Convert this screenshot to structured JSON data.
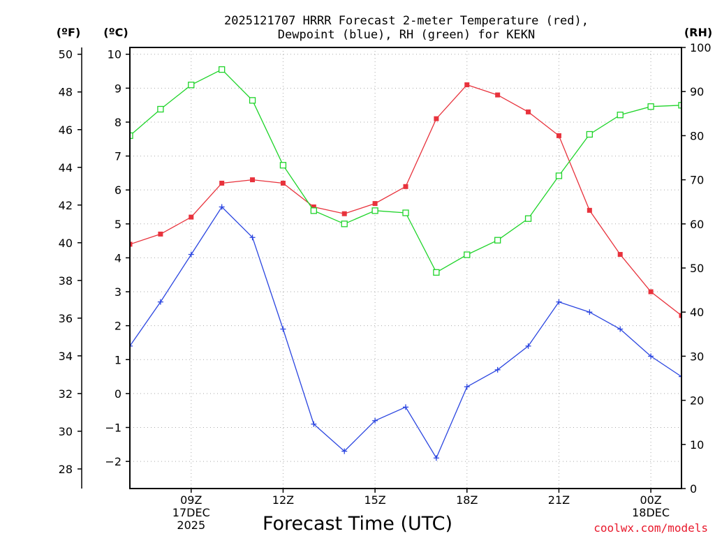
{
  "title": {
    "line1": "2025121707 HRRR Forecast 2-meter Temperature (red),",
    "line2": "Dewpoint (blue), RH (green) for KEKN"
  },
  "units": {
    "f": "(ºF)",
    "c": "(ºC)",
    "rh": "(RH)"
  },
  "xlabel": "Forecast Time (UTC)",
  "credit": "coolwx.com/models",
  "colors": {
    "temperature": "#e8323c",
    "dewpoint": "#2a45e0",
    "rh": "#1fd42a"
  },
  "chart_data": {
    "type": "line",
    "x_label": "Forecast Time (UTC)",
    "x_range_hours": [
      7,
      25
    ],
    "x_ticks": [
      {
        "hour": 9,
        "label": "09Z",
        "line2": "17DEC",
        "line3": "2025"
      },
      {
        "hour": 12,
        "label": "12Z",
        "line2": "",
        "line3": ""
      },
      {
        "hour": 15,
        "label": "15Z",
        "line2": "",
        "line3": ""
      },
      {
        "hour": 18,
        "label": "18Z",
        "line2": "",
        "line3": ""
      },
      {
        "hour": 21,
        "label": "21Z",
        "line2": "",
        "line3": ""
      },
      {
        "hour": 24,
        "label": "00Z",
        "line2": "18DEC",
        "line3": ""
      }
    ],
    "y_left_c": {
      "range": [
        -2.8,
        10.2
      ],
      "ticks": [
        -2,
        -1,
        0,
        1,
        2,
        3,
        4,
        5,
        6,
        7,
        8,
        9,
        10
      ]
    },
    "y_left_f": {
      "ticks": [
        28,
        30,
        32,
        34,
        36,
        38,
        40,
        42,
        44,
        46,
        48,
        50
      ]
    },
    "y_right_rh": {
      "range": [
        0,
        100
      ],
      "ticks": [
        0,
        10,
        20,
        30,
        40,
        50,
        60,
        70,
        80,
        90,
        100
      ]
    },
    "grid": true,
    "x": [
      7,
      8,
      9,
      10,
      11,
      12,
      13,
      14,
      15,
      16,
      17,
      18,
      19,
      20,
      21,
      22,
      23,
      24,
      25
    ],
    "series": [
      {
        "name": "Temperature",
        "axis": "c",
        "marker": "square-filled",
        "color": "#e8323c",
        "values": [
          4.4,
          4.7,
          5.2,
          6.2,
          6.3,
          6.2,
          5.5,
          5.3,
          5.6,
          6.1,
          8.1,
          9.1,
          8.8,
          8.3,
          7.6,
          5.4,
          4.1,
          3.0,
          2.3
        ]
      },
      {
        "name": "Dewpoint",
        "axis": "c",
        "marker": "plus",
        "color": "#2a45e0",
        "values": [
          1.4,
          2.7,
          4.1,
          5.5,
          4.6,
          1.9,
          -0.9,
          -1.7,
          -0.8,
          -0.4,
          -1.9,
          0.2,
          0.7,
          1.4,
          2.7,
          2.4,
          1.9,
          1.1,
          0.5
        ]
      },
      {
        "name": "RH",
        "axis": "rh",
        "marker": "square-open",
        "color": "#1fd42a",
        "values": [
          80,
          86,
          91.5,
          95,
          88,
          73.3,
          63,
          60,
          63,
          62.5,
          49,
          53,
          56.3,
          61.2,
          70.9,
          80.3,
          84.7,
          86.6,
          86.9
        ]
      }
    ]
  }
}
